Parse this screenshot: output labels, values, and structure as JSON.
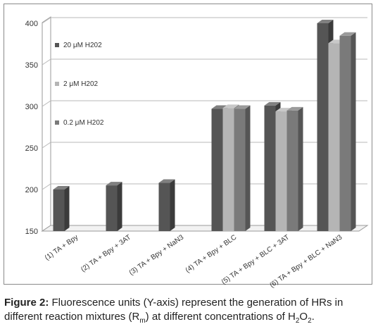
{
  "chart_data": {
    "type": "bar",
    "categories": [
      "(1) TA + Bpy",
      "(2) TA + Bpy + 3AT",
      "(3) TA + Bpy + NaN3",
      "(4) TA + Bpy + BLC",
      "(5) TA + Bpy + BLC + 3AT",
      "(6) TA + Bpy + BLC + NaN3"
    ],
    "series": [
      {
        "name": "20 μM H202",
        "color": "#555555",
        "values": [
          200,
          205,
          208,
          297,
          301,
          400
        ]
      },
      {
        "name": "2 μM H202",
        "color": "#b5b5b5",
        "values": [
          null,
          null,
          null,
          298,
          294,
          376
        ]
      },
      {
        "name": "0.2 μM H202",
        "color": "#7a7a7a",
        "values": [
          null,
          null,
          null,
          297,
          295,
          385
        ]
      }
    ],
    "yticks": [
      "150",
      "200",
      "250",
      "300",
      "350",
      "400"
    ],
    "ylim": [
      150,
      410
    ],
    "grid": true,
    "legend_position": "top-left",
    "title": "",
    "xlabel": "",
    "ylabel": ""
  },
  "caption": {
    "label": "Figure 2:",
    "text_1": " Fluorescence units (Y-axis) represent the generation of HRs in different reaction mixtures (R",
    "sub_m": "m",
    "text_2": ") at different concentrations of H",
    "sub_2a": "2",
    "text_3": "O",
    "sub_2b": "2",
    "text_4": "."
  }
}
